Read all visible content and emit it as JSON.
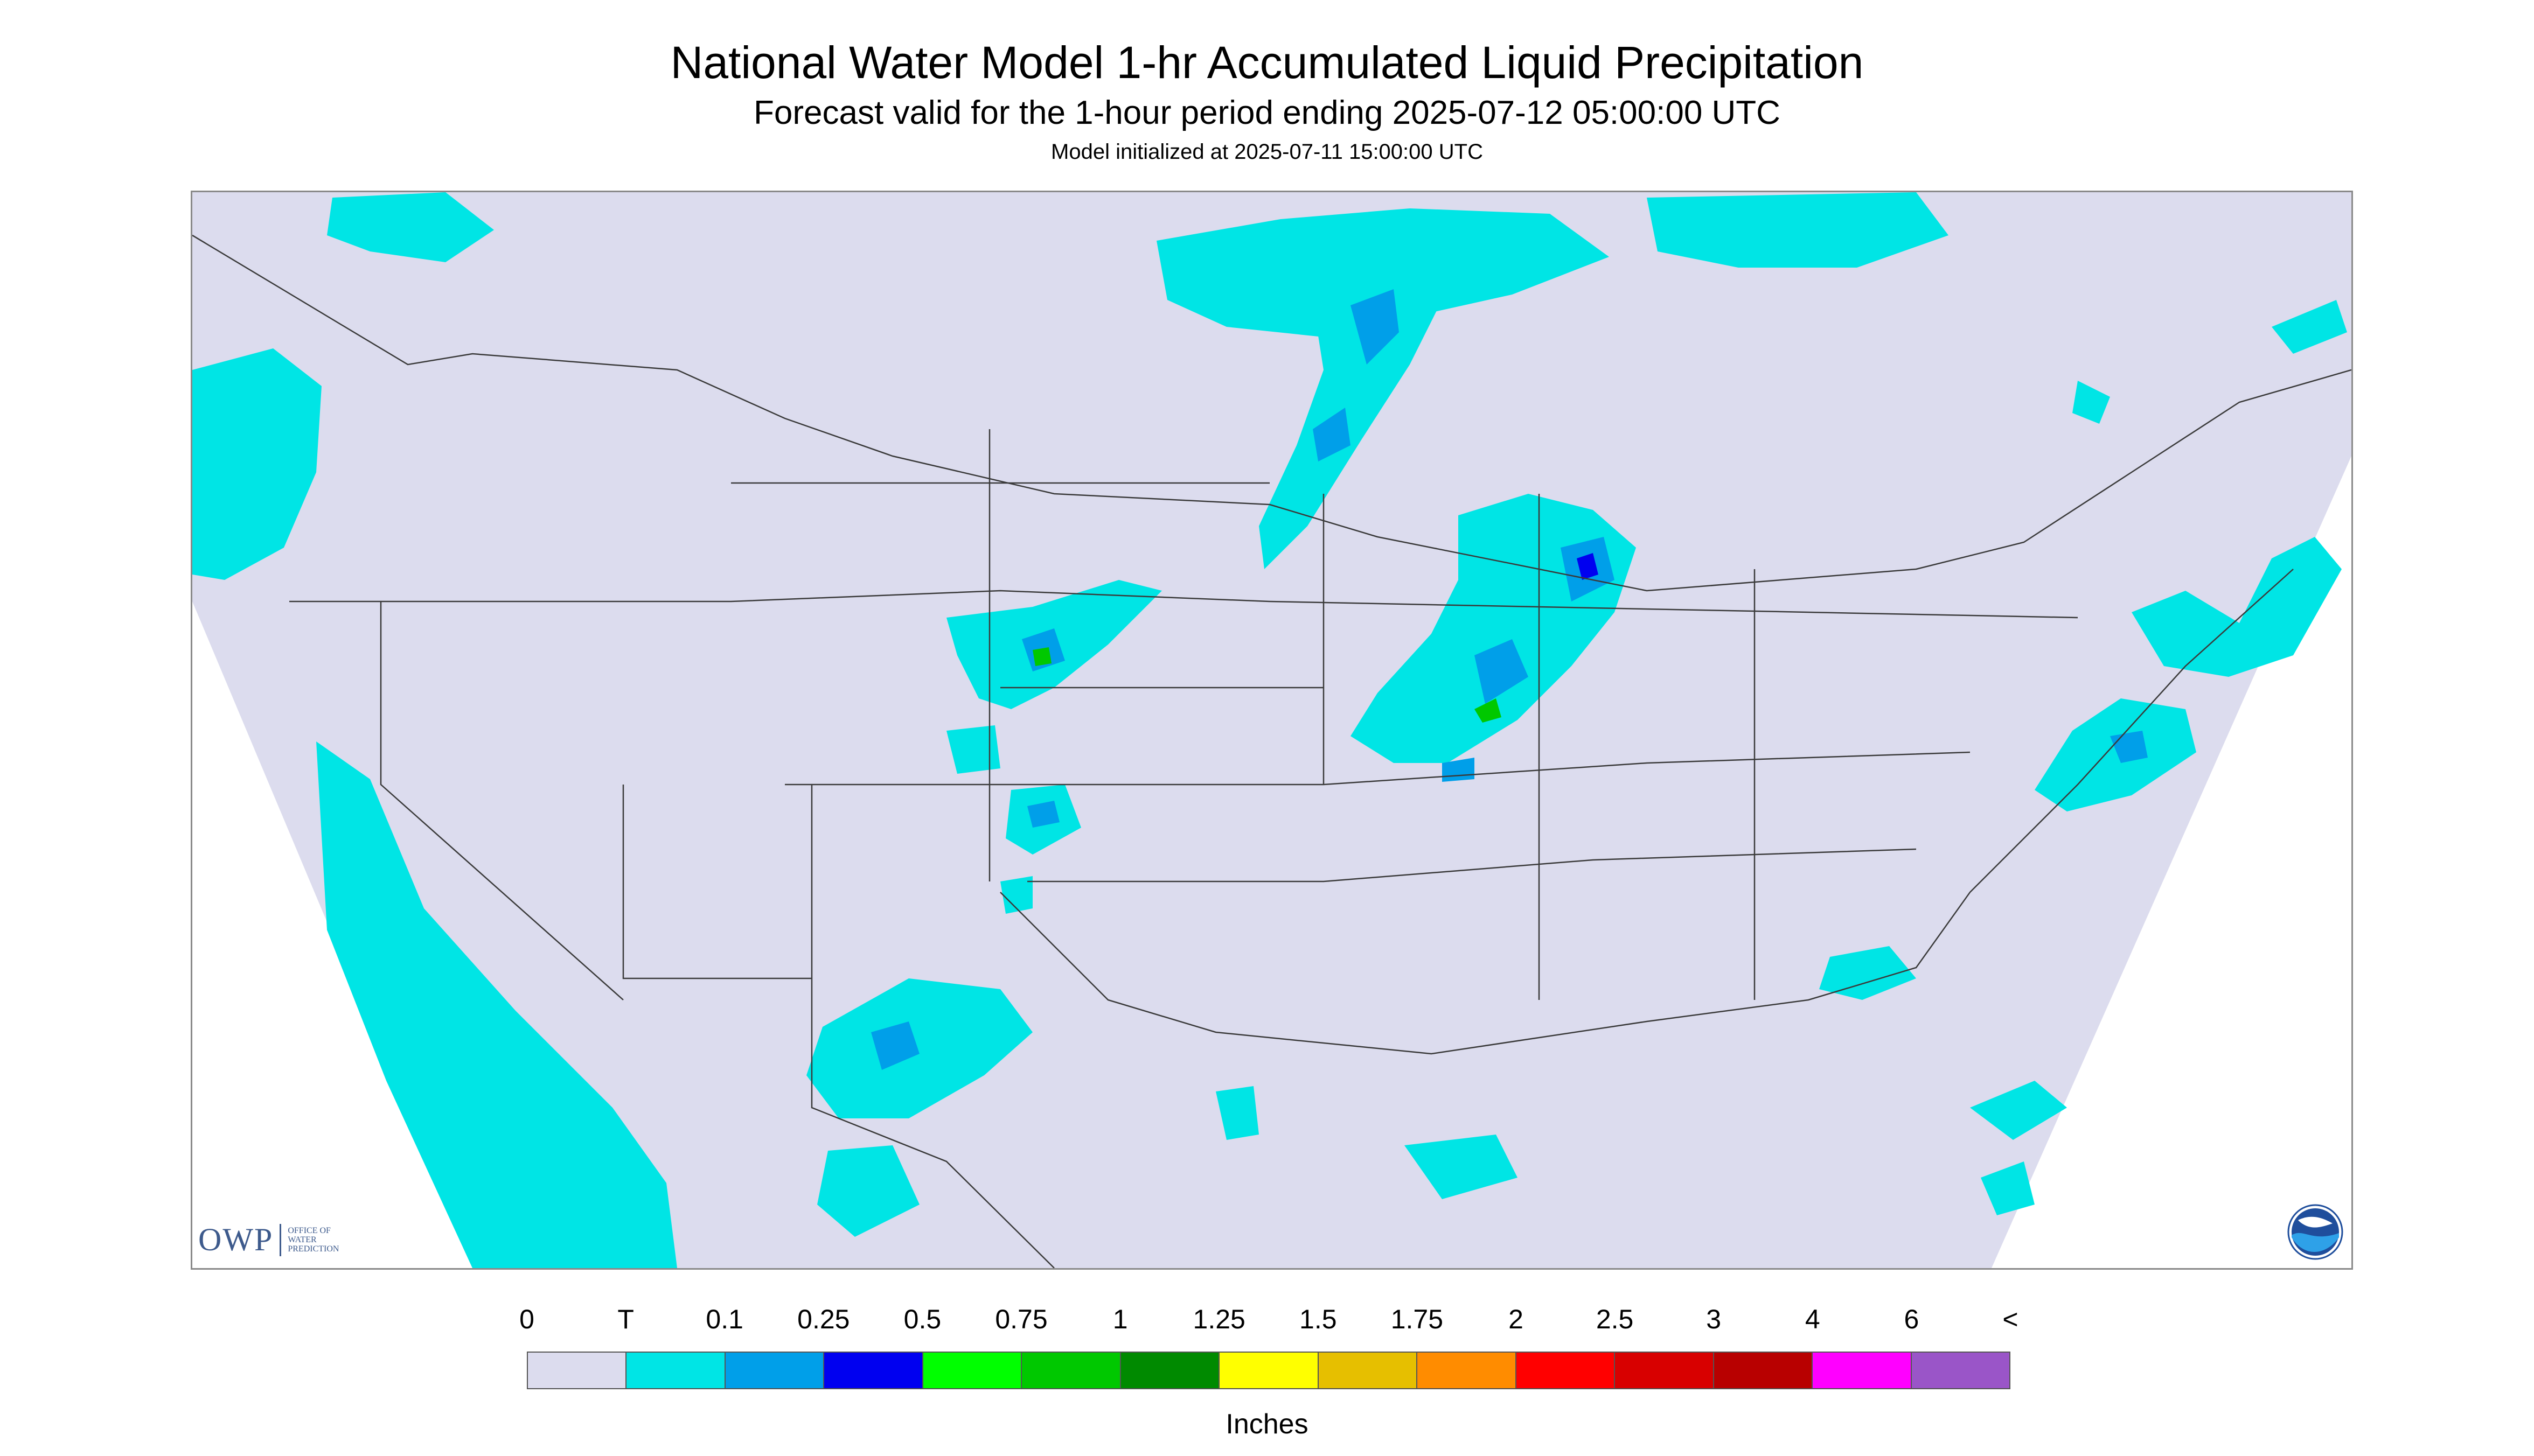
{
  "title": "National Water Model 1-hr Accumulated Liquid Precipitation",
  "subtitle": "Forecast valid for the 1-hour period ending 2025-07-12 05:00:00 UTC",
  "init_text": "Model initialized at 2025-07-11 15:00:00 UTC",
  "logos": {
    "owp_mark": "OWP",
    "owp_text": "Office of Water Prediction",
    "noaa_text": "NOAA"
  },
  "legend": {
    "labels": [
      "0",
      "T",
      "0.1",
      "0.25",
      "0.5",
      "0.75",
      "1",
      "1.25",
      "1.5",
      "1.75",
      "2",
      "2.5",
      "3",
      "4",
      "6",
      "<"
    ],
    "colors": [
      "#dcdcee",
      "#00e5e5",
      "#009fe9",
      "#0000f0",
      "#00ff00",
      "#00c800",
      "#008a00",
      "#ffff00",
      "#e6bf00",
      "#ff8c00",
      "#ff0000",
      "#d80000",
      "#b80000",
      "#ff00ff",
      "#9a55c8"
    ],
    "units": "Inches"
  },
  "map": {
    "background": "#dcdcee",
    "outside_domain": "#ffffff",
    "precip_colors": {
      "trace": "#00e5e5",
      "light": "#009fe9",
      "moderate": "#0000f0",
      "heavy": "#00c800"
    }
  }
}
